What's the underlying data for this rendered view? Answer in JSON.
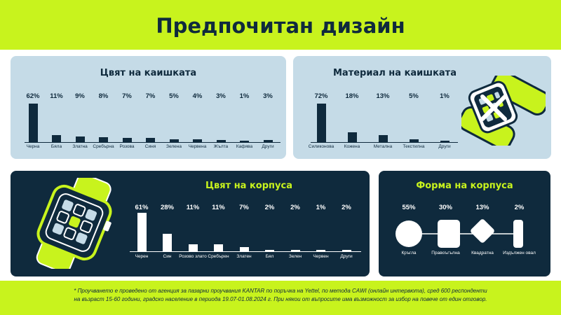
{
  "title": "Предпочитан дизайн",
  "colors": {
    "lime": "#c8f31d",
    "navy": "#0f2a3d",
    "light_blue": "#c5dbe7",
    "white": "#ffffff"
  },
  "chart_data": [
    {
      "type": "bar",
      "title": "Цвят на каишката",
      "categories": [
        "Черна",
        "Бяла",
        "Златна",
        "Сребърна",
        "Розова",
        "Синя",
        "Зелена",
        "Червена",
        "Жълта",
        "Кафява",
        "Други"
      ],
      "values": [
        62,
        11,
        9,
        8,
        7,
        7,
        5,
        4,
        3,
        1,
        3
      ],
      "labels": [
        "62%",
        "11%",
        "9%",
        "8%",
        "7%",
        "7%",
        "5%",
        "4%",
        "3%",
        "1%",
        "3%"
      ]
    },
    {
      "type": "bar",
      "title": "Материал на каишката",
      "categories": [
        "Силиконова",
        "Кожена",
        "Метална",
        "Текстилна",
        "Други"
      ],
      "values": [
        72,
        18,
        13,
        5,
        1
      ],
      "labels": [
        "72%",
        "18%",
        "13%",
        "5%",
        "1%"
      ]
    },
    {
      "type": "bar",
      "title": "Цвят на корпуса",
      "categories": [
        "Черен",
        "Син",
        "Розово злато",
        "Сребърен",
        "Златен",
        "Бял",
        "Зелен",
        "Червен",
        "Други"
      ],
      "values": [
        61,
        28,
        11,
        11,
        7,
        2,
        2,
        1,
        2
      ],
      "labels": [
        "61%",
        "28%",
        "11%",
        "11%",
        "7%",
        "2%",
        "2%",
        "1%",
        "2%"
      ]
    },
    {
      "type": "bar",
      "title": "Форма на корпуса",
      "categories": [
        "Кръгла",
        "Правоъгълна",
        "Квадратна",
        "Издължен овал"
      ],
      "values": [
        55,
        30,
        13,
        2
      ],
      "labels": [
        "55%",
        "30%",
        "13%",
        "2%"
      ]
    }
  ],
  "footnote": [
    "* Проучването е проведено от агенция за пазарни проучвания KANTAR по поръчка на Yettel, по метода CAWI (онлайн интервюта), сред 600 респонденти",
    "на възраст 15-60 години, градско население в периода 19.07-01.08.2024 г. При някои от въпросите има възможност за избор на повече от един отговор."
  ]
}
